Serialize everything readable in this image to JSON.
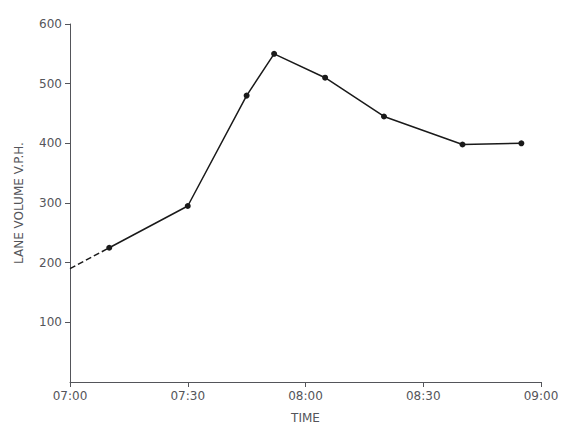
{
  "chart_data": {
    "type": "line",
    "xlabel": "TIME",
    "ylabel": "LANE VOLUME V.P.H.",
    "x": [
      0,
      10,
      30,
      45,
      52,
      65,
      80,
      100,
      115
    ],
    "series": [
      {
        "color": "#1a1a1a",
        "line_style": "dashed",
        "marker": "none",
        "values": [
          190,
          225,
          null,
          null,
          null,
          null,
          null,
          null,
          null
        ]
      },
      {
        "color": "#1a1a1a",
        "line_style": "solid",
        "marker": "o",
        "values": [
          null,
          225,
          295,
          480,
          550,
          510,
          445,
          398,
          400
        ]
      }
    ],
    "xlim": [
      0,
      120
    ],
    "xticks": [
      {
        "value": 0,
        "label": "07:00"
      },
      {
        "value": 30,
        "label": "07:30"
      },
      {
        "value": 60,
        "label": "08:00"
      },
      {
        "value": 90,
        "label": "08:30"
      },
      {
        "value": 120,
        "label": "09:00"
      }
    ],
    "ylim": [
      0,
      600
    ],
    "yticks": [
      100,
      200,
      300,
      400,
      500,
      600
    ],
    "grid": false
  }
}
